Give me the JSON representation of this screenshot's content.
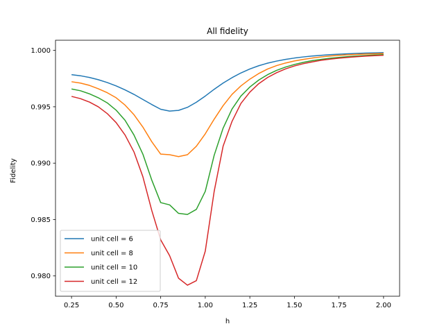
{
  "chart_data": {
    "type": "line",
    "title": "All fidelity",
    "xlabel": "h",
    "ylabel": "Fidelity",
    "xlim": [
      0.16,
      2.09
    ],
    "ylim": [
      0.9782,
      1.0009
    ],
    "xticks": [
      0.25,
      0.5,
      0.75,
      1.0,
      1.25,
      1.5,
      1.75,
      2.0
    ],
    "xtick_labels": [
      "0.25",
      "0.50",
      "0.75",
      "1.00",
      "1.25",
      "1.50",
      "1.75",
      "2.00"
    ],
    "yticks": [
      0.98,
      0.985,
      0.99,
      0.995,
      1.0
    ],
    "ytick_labels": [
      "0.980",
      "0.985",
      "0.990",
      "0.995",
      "1.000"
    ],
    "grid": false,
    "legend_position": "lower-left",
    "series": [
      {
        "name": "unit cell = 6",
        "color": "#1f77b4",
        "x": [
          0.25,
          0.3,
          0.35,
          0.4,
          0.45,
          0.5,
          0.55,
          0.6,
          0.65,
          0.7,
          0.75,
          0.8,
          0.85,
          0.9,
          0.95,
          1.0,
          1.05,
          1.1,
          1.15,
          1.2,
          1.25,
          1.3,
          1.35,
          1.4,
          1.45,
          1.5,
          1.55,
          1.6,
          1.65,
          1.7,
          1.75,
          1.8,
          1.85,
          1.9,
          1.95,
          2.0
        ],
        "y": [
          0.99785,
          0.99775,
          0.9976,
          0.9974,
          0.99715,
          0.99685,
          0.9965,
          0.9961,
          0.99565,
          0.9952,
          0.99478,
          0.99462,
          0.99468,
          0.99495,
          0.9954,
          0.99595,
          0.99655,
          0.9971,
          0.99758,
          0.998,
          0.99835,
          0.99864,
          0.99887,
          0.99905,
          0.9992,
          0.99932,
          0.99942,
          0.9995,
          0.99956,
          0.99962,
          0.99966,
          0.9997,
          0.99973,
          0.99976,
          0.99978,
          0.9998
        ]
      },
      {
        "name": "unit cell = 8",
        "color": "#ff7f0e",
        "x": [
          0.25,
          0.3,
          0.35,
          0.4,
          0.45,
          0.5,
          0.55,
          0.6,
          0.65,
          0.7,
          0.75,
          0.8,
          0.85,
          0.9,
          0.95,
          1.0,
          1.05,
          1.1,
          1.15,
          1.2,
          1.25,
          1.3,
          1.35,
          1.4,
          1.45,
          1.5,
          1.55,
          1.6,
          1.65,
          1.7,
          1.75,
          1.8,
          1.85,
          1.9,
          1.95,
          2.0
        ],
        "y": [
          0.99722,
          0.9971,
          0.9969,
          0.9966,
          0.99625,
          0.9958,
          0.99515,
          0.9943,
          0.9932,
          0.9919,
          0.9908,
          0.99075,
          0.99058,
          0.99075,
          0.9915,
          0.9926,
          0.9939,
          0.9951,
          0.9961,
          0.99685,
          0.99745,
          0.99795,
          0.99835,
          0.99865,
          0.99888,
          0.99906,
          0.9992,
          0.99932,
          0.99942,
          0.9995,
          0.99956,
          0.99961,
          0.99965,
          0.99968,
          0.9997,
          0.99972
        ]
      },
      {
        "name": "unit cell = 10",
        "color": "#2ca02c",
        "x": [
          0.25,
          0.3,
          0.35,
          0.4,
          0.45,
          0.5,
          0.55,
          0.6,
          0.65,
          0.7,
          0.75,
          0.8,
          0.85,
          0.9,
          0.95,
          1.0,
          1.05,
          1.1,
          1.15,
          1.2,
          1.25,
          1.3,
          1.35,
          1.4,
          1.45,
          1.5,
          1.55,
          1.6,
          1.65,
          1.7,
          1.75,
          1.8,
          1.85,
          1.9,
          1.95,
          2.0
        ],
        "y": [
          0.99658,
          0.99642,
          0.99615,
          0.9958,
          0.99535,
          0.9947,
          0.9938,
          0.9925,
          0.9908,
          0.9885,
          0.9865,
          0.9863,
          0.98555,
          0.98545,
          0.9859,
          0.9875,
          0.9907,
          0.9931,
          0.9948,
          0.99595,
          0.99675,
          0.99737,
          0.99785,
          0.99823,
          0.99852,
          0.99875,
          0.99894,
          0.99909,
          0.9992,
          0.9993,
          0.99938,
          0.99945,
          0.9995,
          0.99955,
          0.99959,
          0.99962
        ]
      },
      {
        "name": "unit cell = 12",
        "color": "#d62728",
        "x": [
          0.25,
          0.3,
          0.35,
          0.4,
          0.45,
          0.5,
          0.55,
          0.6,
          0.65,
          0.7,
          0.75,
          0.8,
          0.85,
          0.9,
          0.95,
          1.0,
          1.05,
          1.1,
          1.15,
          1.2,
          1.25,
          1.3,
          1.35,
          1.4,
          1.45,
          1.5,
          1.55,
          1.6,
          1.65,
          1.7,
          1.75,
          1.8,
          1.85,
          1.9,
          1.95,
          2.0
        ],
        "y": [
          0.99592,
          0.99572,
          0.99542,
          0.995,
          0.9944,
          0.9936,
          0.9925,
          0.991,
          0.9888,
          0.9858,
          0.9832,
          0.9818,
          0.9798,
          0.97918,
          0.97958,
          0.9822,
          0.9875,
          0.9915,
          0.9937,
          0.9953,
          0.9963,
          0.99705,
          0.9976,
          0.99802,
          0.99836,
          0.99862,
          0.99882,
          0.99898,
          0.99912,
          0.99922,
          0.99931,
          0.99938,
          0.99944,
          0.99949,
          0.99953,
          0.99957
        ]
      }
    ]
  }
}
